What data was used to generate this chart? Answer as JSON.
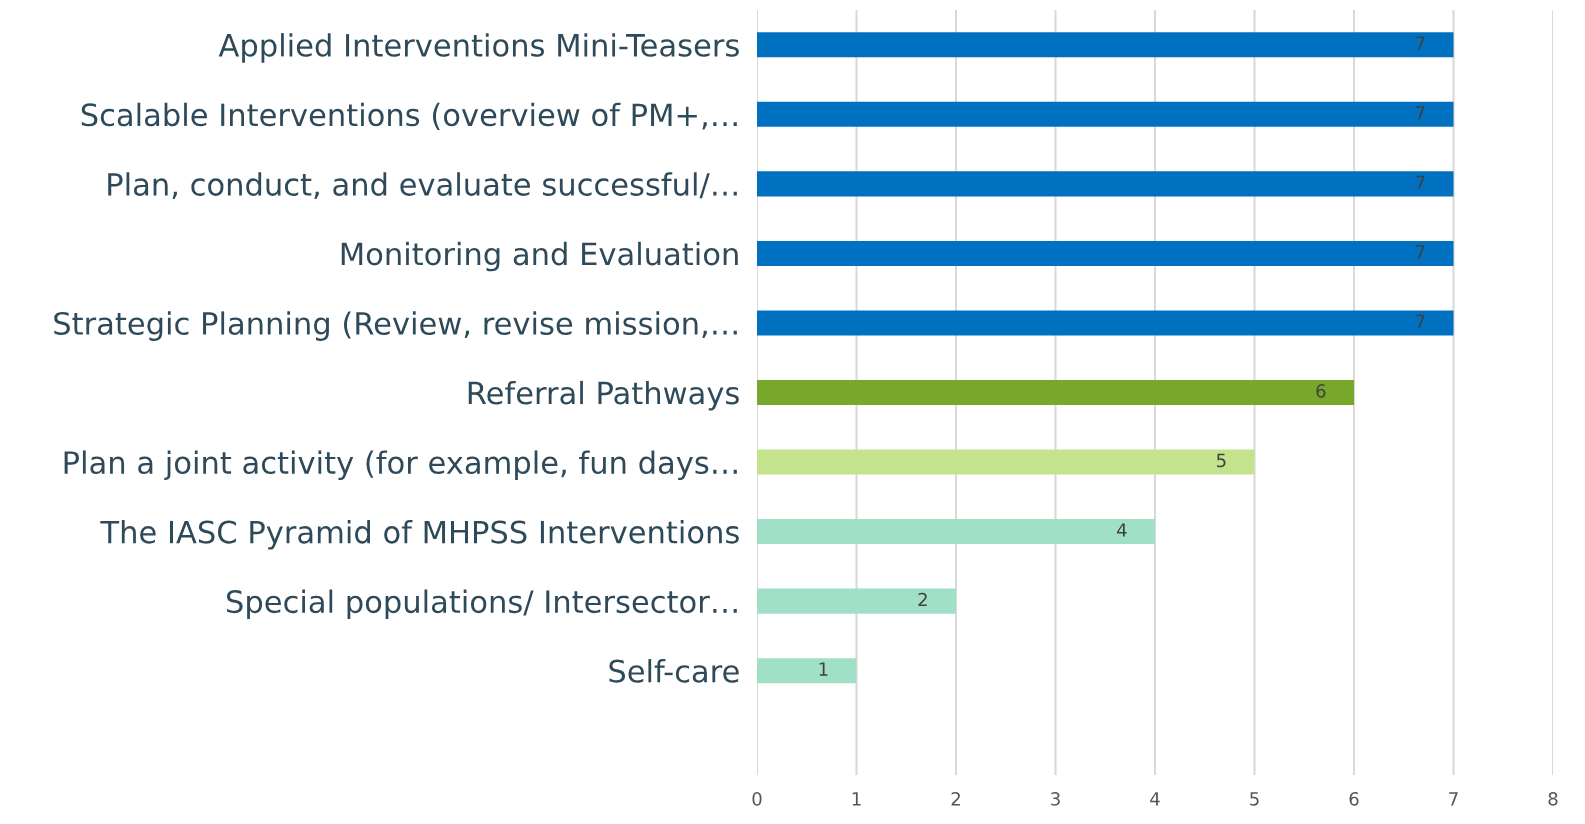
{
  "chart_data": {
    "type": "bar",
    "orientation": "horizontal",
    "categories": [
      "Applied Interventions Mini-Teasers",
      "Scalable Interventions (overview of PM+,…",
      "Plan, conduct, and evaluate successful/…",
      "Monitoring and Evaluation",
      "Strategic Planning (Review, revise mission,…",
      "Referral Pathways",
      "Plan a joint activity (for example, fun days…",
      "The IASC Pyramid of MHPSS Interventions",
      "Special populations/ Intersector…",
      "Self-care"
    ],
    "values": [
      7,
      7,
      7,
      7,
      7,
      6,
      5,
      4,
      2,
      1
    ],
    "colors": [
      "#0070c0",
      "#0070c0",
      "#0070c0",
      "#0070c0",
      "#0070c0",
      "#77a82a",
      "#c3e38c",
      "#a0e0c6",
      "#a0e0c6",
      "#a0e0c6"
    ],
    "xlim": [
      0,
      8
    ],
    "xticks": [
      0,
      1,
      2,
      3,
      4,
      5,
      6,
      7,
      8
    ],
    "grid": "x",
    "data_labels": true
  }
}
